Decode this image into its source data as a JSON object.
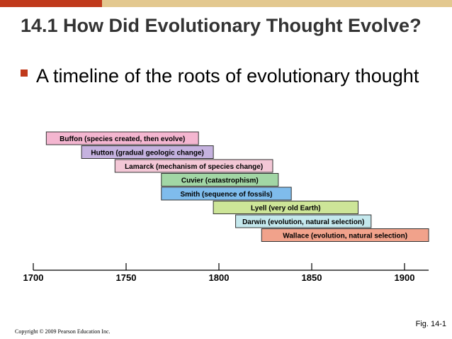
{
  "slide": {
    "title": "14.1 How Did Evolutionary Thought Evolve?",
    "bullet": "A timeline of the roots of evolutionary thought",
    "figure_label": "Fig. 14-1",
    "copyright": "Copyright © 2009 Pearson Education Inc.",
    "colors": {
      "accent_red": "#c0391b",
      "accent_tan": "#e3c88f"
    }
  },
  "timeline": {
    "axis_ticks": [
      1700,
      1750,
      1800,
      1850,
      1900
    ],
    "axis_range": [
      1700,
      1913
    ],
    "bars": [
      {
        "label": "Buffon (species created, then evolve)",
        "start": 1707,
        "end": 1789,
        "color": "#f4b6d0"
      },
      {
        "label": "Hutton (gradual geologic change)",
        "start": 1726,
        "end": 1797,
        "color": "#c5b2df"
      },
      {
        "label": "Lamarck (mechanism of species change)",
        "start": 1744,
        "end": 1829,
        "color": "#f3c7d6"
      },
      {
        "label": "Cuvier (catastrophism)",
        "start": 1769,
        "end": 1832,
        "color": "#a2d6a5"
      },
      {
        "label": "Smith (sequence of fossils)",
        "start": 1769,
        "end": 1839,
        "color": "#7fbcec"
      },
      {
        "label": "Lyell (very old Earth)",
        "start": 1797,
        "end": 1875,
        "color": "#cde598"
      },
      {
        "label": "Darwin (evolution, natural selection)",
        "start": 1809,
        "end": 1882,
        "color": "#c4e8ed"
      },
      {
        "label": "Wallace (evolution, natural selection)",
        "start": 1823,
        "end": 1913,
        "color": "#f1a28b"
      }
    ]
  }
}
